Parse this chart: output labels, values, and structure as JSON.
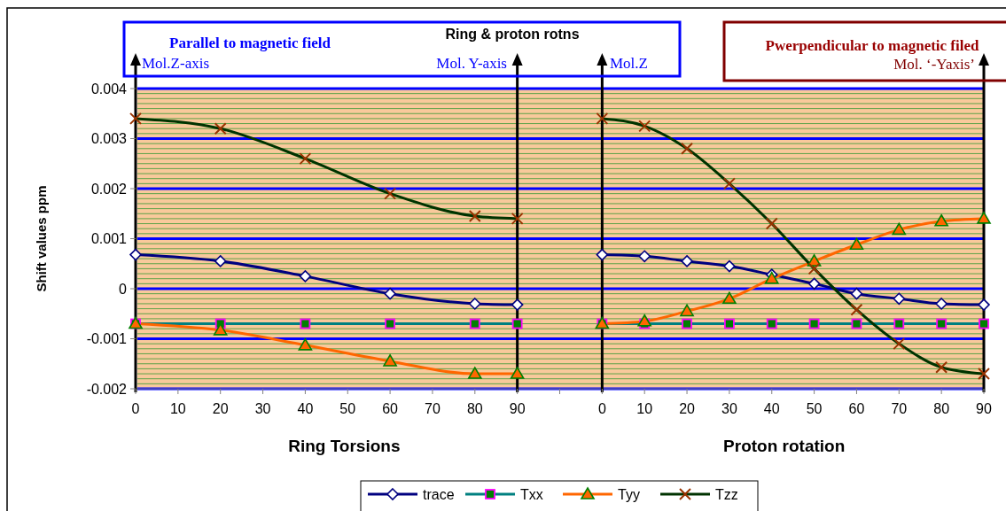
{
  "chart_data": {
    "type": "line",
    "title": "Ring & proton rotns",
    "ylabel": "Shift values ppm",
    "annotations": [
      "Parallel to magnetic field",
      "Mol.Z-axis",
      "Mol. Y-axis",
      "Mol.Z",
      "Pwerpendicular to magnetic filed",
      "Mol. ‘-Yaxis’",
      "Ring Torsions",
      "Proton rotation"
    ],
    "categories": [
      "0",
      "10",
      "20",
      "30",
      "40",
      "50",
      "60",
      "70",
      "80",
      "90",
      null,
      "0",
      "10",
      "20",
      "30",
      "40",
      "50",
      "60",
      "70",
      "80",
      "90"
    ],
    "series": [
      {
        "name": "trace",
        "color": "#000080",
        "marker": "diamond",
        "values": [
          0.00068,
          null,
          0.00055,
          null,
          0.00025,
          null,
          -0.0001,
          null,
          -0.0003,
          -0.00032,
          null,
          0.00068,
          0.00065,
          0.00055,
          0.00045,
          0.00028,
          0.0001,
          -0.0001,
          -0.0002,
          -0.0003,
          -0.00032
        ]
      },
      {
        "name": "Txx",
        "color": "#008080",
        "marker": "square",
        "values": [
          -0.0007,
          null,
          -0.0007,
          null,
          -0.0007,
          null,
          -0.0007,
          null,
          -0.0007,
          -0.0007,
          null,
          -0.0007,
          -0.0007,
          -0.0007,
          -0.0007,
          -0.0007,
          -0.0007,
          -0.0007,
          -0.0007,
          -0.0007,
          -0.0007
        ]
      },
      {
        "name": "Tyy",
        "color": "#ff6600",
        "marker": "triangle",
        "values": [
          -0.0007,
          null,
          -0.00083,
          null,
          -0.00113,
          null,
          -0.00145,
          null,
          -0.0017,
          -0.0017,
          null,
          -0.0007,
          -0.00065,
          -0.00045,
          -0.0002,
          0.0002,
          0.00055,
          0.00088,
          0.00118,
          0.00135,
          0.0014
        ]
      },
      {
        "name": "Tzz",
        "color": "#003300",
        "marker": "cross",
        "values": [
          0.0034,
          null,
          0.0032,
          null,
          0.0026,
          null,
          0.0019,
          null,
          0.00145,
          0.0014,
          null,
          0.0034,
          0.00325,
          0.0028,
          0.0021,
          0.0013,
          0.0004,
          -0.00042,
          -0.0011,
          -0.00157,
          -0.0017
        ]
      }
    ],
    "ylim": [
      -0.002,
      0.004
    ],
    "yticks": [
      -0.002,
      {
        "value": -0.0019,
        "label": null
      },
      {
        "value": -0.0018,
        "label": null
      },
      {
        "value": -0.0017,
        "label": null
      },
      {
        "value": -0.0016,
        "label": null
      },
      {
        "value": -0.0015,
        "label": null
      },
      {
        "value": -0.0014,
        "label": null
      },
      {
        "value": -0.0013,
        "label": null
      },
      {
        "value": -0.0012,
        "label": null
      },
      {
        "value": -0.0011,
        "label": null
      },
      -0.001,
      {
        "value": -0.0009,
        "label": null
      },
      {
        "value": -0.0008,
        "label": null
      },
      {
        "value": -0.0007,
        "label": null
      },
      {
        "value": -0.0006,
        "label": null
      },
      {
        "value": -0.0005,
        "label": null
      },
      {
        "value": -0.0004,
        "label": null
      },
      {
        "value": -0.0003,
        "label": null
      },
      {
        "value": -0.0002,
        "label": null
      },
      {
        "value": -0.0001,
        "label": null
      },
      0,
      {
        "value": 0.0001,
        "label": null
      },
      {
        "value": 0.0002,
        "label": null
      },
      {
        "value": 0.0003,
        "label": null
      },
      {
        "value": 0.0004,
        "label": null
      },
      {
        "value": 0.0005,
        "label": null
      },
      {
        "value": 0.0006,
        "label": null
      },
      {
        "value": 0.0007,
        "label": null
      },
      {
        "value": 0.0008,
        "label": null
      },
      {
        "value": 0.0009,
        "label": null
      },
      0.001,
      {
        "value": 0.0011,
        "label": null
      },
      {
        "value": 0.0012,
        "label": null
      },
      {
        "value": 0.0013,
        "label": null
      },
      {
        "value": 0.0014,
        "label": null
      },
      {
        "value": 0.0015,
        "label": null
      },
      {
        "value": 0.0016,
        "label": null
      },
      {
        "value": 0.0017,
        "label": null
      },
      {
        "value": 0.0018,
        "label": null
      },
      {
        "value": 0.0019,
        "label": null
      },
      0.002,
      {
        "value": 0.0021,
        "label": null
      },
      {
        "value": 0.0022,
        "label": null
      },
      {
        "value": 0.0023,
        "label": null
      },
      {
        "value": 0.0024,
        "label": null
      },
      {
        "value": 0.0025,
        "label": null
      },
      {
        "value": 0.0026,
        "label": null
      },
      {
        "value": 0.0027,
        "label": null
      },
      {
        "value": 0.0028,
        "label": null
      },
      {
        "value": 0.0029,
        "label": null
      },
      0.003,
      {
        "value": 0.0031,
        "label": null
      },
      {
        "value": 0.0032,
        "label": null
      },
      {
        "value": 0.0033,
        "label": null
      },
      {
        "value": 0.0034,
        "label": null
      },
      {
        "value": 0.0035,
        "label": null
      },
      {
        "value": 0.0036,
        "label": null
      },
      {
        "value": 0.0037,
        "label": null
      },
      {
        "value": 0.0038,
        "label": null
      },
      {
        "value": 0.0039,
        "label": null
      },
      0.004
    ],
    "grid": "y",
    "legend": "bottom",
    "line_style": "solid"
  }
}
